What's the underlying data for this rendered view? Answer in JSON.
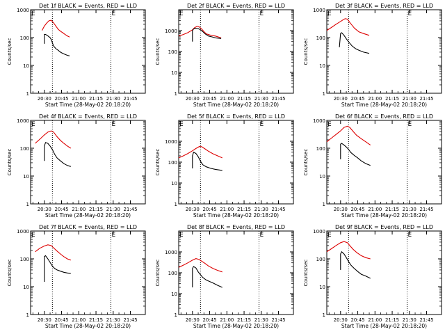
{
  "figure": {
    "ylabel": "Counts/sec",
    "xlabel": "Start Time (28-May-02 20:18:20)",
    "ytick_labels": [
      "1",
      "10",
      "100",
      "1000"
    ],
    "corner_marker": "E",
    "colors": {
      "events": "#000000",
      "lld": "#dd0000",
      "axes": "#000000"
    }
  },
  "chart_data": [
    {
      "type": "line",
      "title": "Det 1f BLACK = Events, RED = LLD",
      "y_scale": "log",
      "ylim": [
        1,
        1000
      ],
      "x_ticks": [
        "20:30",
        "20:45",
        "21:00",
        "21:15",
        "21:30",
        "21:45"
      ],
      "tick_start": "20:30",
      "xlim": [
        "20:18",
        "21:58"
      ],
      "dotted_lines": [
        "20:37",
        "21:28"
      ],
      "markers_at": [
        "20:18",
        "21:28"
      ],
      "series": [
        {
          "x": [
            "20:28",
            "20:30",
            "20:32",
            "20:34",
            "20:36",
            "20:38",
            "20:40",
            "20:42",
            "20:44",
            "20:46",
            "20:48",
            "20:50",
            "20:52"
          ],
          "values": [
            180,
            260,
            330,
            400,
            420,
            340,
            260,
            200,
            170,
            150,
            130,
            115,
            105
          ]
        },
        {
          "x": [
            "20:30",
            "20:30",
            "20:31",
            "20:33",
            "20:35",
            "20:36",
            "20:37",
            "20:38",
            "20:40",
            "20:42",
            "20:44",
            "20:46",
            "20:48",
            "20:50",
            "20:52"
          ],
          "values": [
            60,
            130,
            130,
            115,
            100,
            85,
            65,
            50,
            40,
            35,
            30,
            27,
            25,
            23,
            22
          ]
        }
      ]
    },
    {
      "type": "line",
      "title": "Det 2f BLACK = Events, RED = LLD",
      "y_scale": "log",
      "ylim": [
        1,
        10000
      ],
      "x_ticks": [
        "20:30",
        "20:45",
        "21:00",
        "21:15",
        "21:30",
        "21:45"
      ],
      "tick_start": "20:30",
      "xlim": [
        "20:18",
        "21:58"
      ],
      "dotted_lines": [
        "20:37",
        "21:28"
      ],
      "markers_at": [
        "20:18",
        "21:28"
      ],
      "series": [
        {
          "x": [
            "20:18",
            "20:22",
            "20:26",
            "20:30",
            "20:32",
            "20:34",
            "20:36",
            "20:38",
            "20:40",
            "20:42",
            "20:46",
            "20:50",
            "20:55"
          ],
          "values": [
            550,
            650,
            800,
            1100,
            1400,
            1600,
            1500,
            1200,
            900,
            700,
            600,
            550,
            450
          ]
        },
        {
          "x": [
            "20:30",
            "20:30",
            "20:31",
            "20:33",
            "20:35",
            "20:37",
            "20:39",
            "20:41",
            "20:44",
            "20:47",
            "20:50",
            "20:55"
          ],
          "values": [
            300,
            1000,
            1200,
            1300,
            1250,
            1100,
            900,
            700,
            550,
            500,
            450,
            420
          ]
        }
      ]
    },
    {
      "type": "line",
      "title": "Det 3f BLACK = Events, RED = LLD",
      "y_scale": "log",
      "ylim": [
        1,
        1000
      ],
      "x_ticks": [
        "20:30",
        "20:45",
        "21:00",
        "21:15",
        "21:30",
        "21:45"
      ],
      "tick_start": "20:30",
      "xlim": [
        "20:18",
        "21:58"
      ],
      "dotted_lines": [
        "20:37",
        "21:28"
      ],
      "markers_at": [
        "20:18",
        "21:28"
      ],
      "series": [
        {
          "x": [
            "20:18",
            "20:22",
            "20:26",
            "20:30",
            "20:32",
            "20:34",
            "20:36",
            "20:38",
            "20:42",
            "20:46",
            "20:50",
            "20:55"
          ],
          "values": [
            180,
            230,
            300,
            380,
            430,
            480,
            460,
            350,
            220,
            160,
            140,
            120
          ]
        },
        {
          "x": [
            "20:29",
            "20:30",
            "20:31",
            "20:33",
            "20:35",
            "20:37",
            "20:40",
            "20:43",
            "20:46",
            "20:50",
            "20:55"
          ],
          "values": [
            45,
            140,
            150,
            120,
            90,
            70,
            50,
            40,
            35,
            30,
            27
          ]
        }
      ]
    },
    {
      "type": "line",
      "title": "Det 4f BLACK = Events, RED = LLD",
      "y_scale": "log",
      "ylim": [
        1,
        1000
      ],
      "x_ticks": [
        "20:30",
        "20:45",
        "21:00",
        "21:15",
        "21:30",
        "21:45"
      ],
      "tick_start": "20:30",
      "xlim": [
        "20:18",
        "21:58"
      ],
      "dotted_lines": [
        "20:37",
        "21:28"
      ],
      "markers_at": [
        "20:18",
        "21:28"
      ],
      "series": [
        {
          "x": [
            "20:22",
            "20:26",
            "20:30",
            "20:33",
            "20:36",
            "20:38",
            "20:41",
            "20:44",
            "20:47",
            "20:50",
            "20:53"
          ],
          "values": [
            150,
            210,
            300,
            380,
            420,
            380,
            260,
            190,
            150,
            120,
            100
          ]
        },
        {
          "x": [
            "20:30",
            "20:30",
            "20:31",
            "20:33",
            "20:35",
            "20:37",
            "20:39",
            "20:41",
            "20:44",
            "20:47",
            "20:50",
            "20:53"
          ],
          "values": [
            35,
            120,
            160,
            150,
            120,
            90,
            60,
            45,
            35,
            28,
            24,
            22
          ]
        }
      ]
    },
    {
      "type": "line",
      "title": "Det 5f BLACK = Events, RED = LLD",
      "y_scale": "log",
      "ylim": [
        1,
        10000
      ],
      "x_ticks": [
        "20:30",
        "20:45",
        "21:00",
        "21:15",
        "21:30",
        "21:45"
      ],
      "tick_start": "20:30",
      "xlim": [
        "20:18",
        "21:58"
      ],
      "dotted_lines": [
        "20:37",
        "21:28"
      ],
      "markers_at": [
        "20:18",
        "21:28"
      ],
      "series": [
        {
          "x": [
            "20:18",
            "20:22",
            "20:26",
            "20:30",
            "20:33",
            "20:36",
            "20:38",
            "20:41",
            "20:44",
            "20:48",
            "20:52",
            "20:56"
          ],
          "values": [
            160,
            200,
            260,
            350,
            450,
            560,
            550,
            430,
            330,
            250,
            200,
            160
          ]
        },
        {
          "x": [
            "20:30",
            "20:30",
            "20:31",
            "20:33",
            "20:35",
            "20:37",
            "20:39",
            "20:42",
            "20:46",
            "20:50",
            "20:56"
          ],
          "values": [
            50,
            200,
            300,
            260,
            180,
            110,
            75,
            60,
            50,
            45,
            40
          ]
        }
      ]
    },
    {
      "type": "line",
      "title": "Det 6f BLACK = Events, RED = LLD",
      "y_scale": "log",
      "ylim": [
        1,
        1000
      ],
      "x_ticks": [
        "20:30",
        "20:45",
        "21:00",
        "21:15",
        "21:30",
        "21:45"
      ],
      "tick_start": "20:30",
      "xlim": [
        "20:18",
        "21:58"
      ],
      "dotted_lines": [
        "20:37",
        "21:28"
      ],
      "markers_at": [
        "20:18",
        "21:28"
      ],
      "series": [
        {
          "x": [
            "20:18",
            "20:22",
            "20:26",
            "20:30",
            "20:33",
            "20:36",
            "20:38",
            "20:41",
            "20:44",
            "20:48",
            "20:52",
            "20:56"
          ],
          "values": [
            170,
            230,
            310,
            420,
            560,
            620,
            560,
            400,
            290,
            220,
            170,
            130
          ]
        },
        {
          "x": [
            "20:30",
            "20:30",
            "20:31",
            "20:33",
            "20:35",
            "20:37",
            "20:39",
            "20:42",
            "20:45",
            "20:48",
            "20:52",
            "20:56"
          ],
          "values": [
            40,
            140,
            150,
            130,
            110,
            90,
            70,
            55,
            45,
            35,
            28,
            24
          ]
        }
      ]
    },
    {
      "type": "line",
      "title": "Det 7f BLACK = Events, RED = LLD",
      "y_scale": "log",
      "ylim": [
        1,
        1000
      ],
      "x_ticks": [
        "20:30",
        "20:45",
        "21:00",
        "21:15",
        "21:30",
        "21:45"
      ],
      "tick_start": "20:30",
      "xlim": [
        "20:18",
        "21:58"
      ],
      "dotted_lines": [
        "20:37",
        "21:28"
      ],
      "markers_at": [
        "20:18",
        "21:28"
      ],
      "series": [
        {
          "x": [
            "20:22",
            "20:26",
            "20:30",
            "20:33",
            "20:36",
            "20:38",
            "20:41",
            "20:44",
            "20:47",
            "20:50",
            "20:53"
          ],
          "values": [
            180,
            240,
            290,
            320,
            300,
            250,
            190,
            150,
            120,
            100,
            90
          ]
        },
        {
          "x": [
            "20:30",
            "20:30",
            "20:31",
            "20:33",
            "20:35",
            "20:37",
            "20:39",
            "20:41",
            "20:44",
            "20:47",
            "20:50",
            "20:53"
          ],
          "values": [
            15,
            120,
            130,
            100,
            75,
            55,
            45,
            40,
            36,
            33,
            31,
            30
          ]
        }
      ]
    },
    {
      "type": "line",
      "title": "Det 8f BLACK = Events, RED = LLD",
      "y_scale": "log",
      "ylim": [
        1,
        10000
      ],
      "x_ticks": [
        "20:30",
        "20:45",
        "21:00",
        "21:15",
        "21:30",
        "21:45"
      ],
      "tick_start": "20:30",
      "xlim": [
        "20:18",
        "21:58"
      ],
      "dotted_lines": [
        "20:37",
        "21:28"
      ],
      "markers_at": [
        "20:18",
        "21:28"
      ],
      "series": [
        {
          "x": [
            "20:18",
            "20:22",
            "20:26",
            "20:30",
            "20:33",
            "20:36",
            "20:38",
            "20:41",
            "20:44",
            "20:48",
            "20:52",
            "20:56"
          ],
          "values": [
            180,
            230,
            300,
            400,
            480,
            430,
            360,
            280,
            210,
            160,
            130,
            110
          ]
        },
        {
          "x": [
            "20:30",
            "20:30",
            "20:31",
            "20:33",
            "20:35",
            "20:37",
            "20:39",
            "20:42",
            "20:45",
            "20:48",
            "20:52",
            "20:56"
          ],
          "values": [
            20,
            160,
            200,
            170,
            110,
            80,
            60,
            45,
            38,
            32,
            25,
            20
          ]
        }
      ]
    },
    {
      "type": "line",
      "title": "Det 9f BLACK = Events, RED = LLD",
      "y_scale": "log",
      "ylim": [
        1,
        1000
      ],
      "x_ticks": [
        "20:30",
        "20:45",
        "21:00",
        "21:15",
        "21:30",
        "21:45"
      ],
      "tick_start": "20:30",
      "xlim": [
        "20:18",
        "21:58"
      ],
      "dotted_lines": [
        "20:37",
        "21:28"
      ],
      "markers_at": [
        "20:18",
        "21:28"
      ],
      "series": [
        {
          "x": [
            "20:18",
            "20:22",
            "20:26",
            "20:30",
            "20:33",
            "20:36",
            "20:38",
            "20:41",
            "20:44",
            "20:48",
            "20:52",
            "20:56"
          ],
          "values": [
            180,
            230,
            300,
            380,
            420,
            380,
            300,
            220,
            170,
            130,
            110,
            100
          ]
        },
        {
          "x": [
            "20:30",
            "20:30",
            "20:31",
            "20:33",
            "20:35",
            "20:37",
            "20:39",
            "20:42",
            "20:45",
            "20:48",
            "20:52",
            "20:56"
          ],
          "values": [
            40,
            150,
            180,
            150,
            110,
            80,
            60,
            45,
            35,
            28,
            24,
            20
          ]
        }
      ]
    }
  ]
}
